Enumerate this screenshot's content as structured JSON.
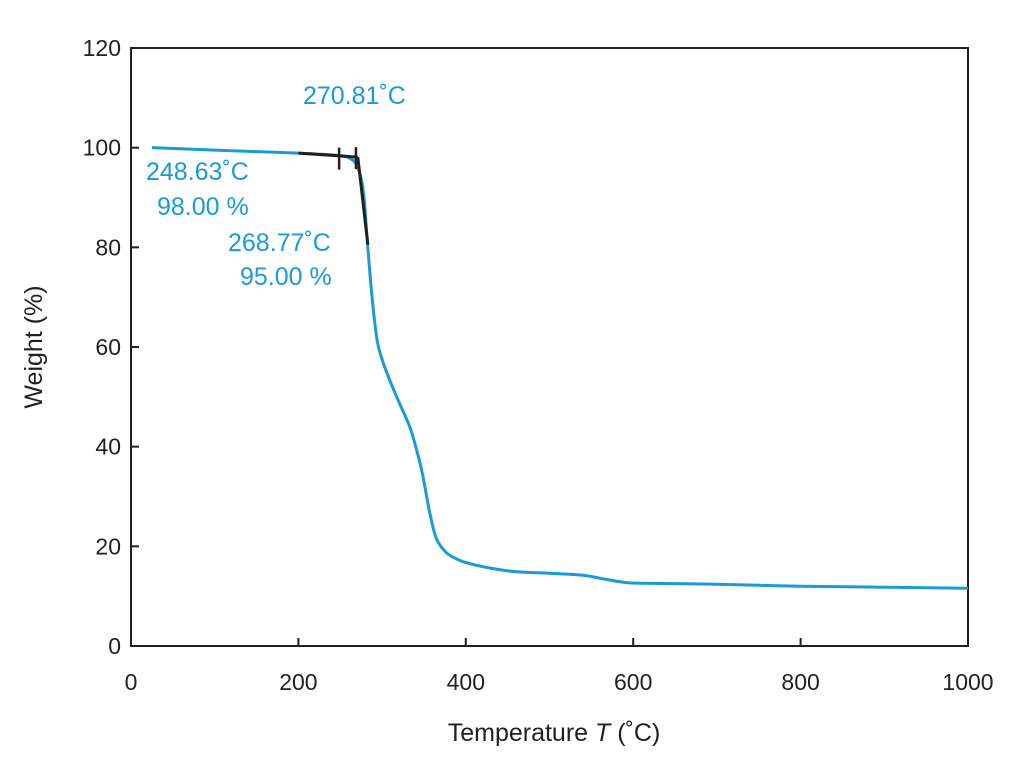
{
  "chart_data": {
    "type": "line",
    "title": "",
    "xlabel": "Temperature T (˚C)",
    "xlabel_parts": {
      "pre": "Temperature ",
      "var": "T",
      "post": " (˚C)"
    },
    "ylabel": "Weight (%)",
    "xlim": [
      0,
      1000
    ],
    "ylim": [
      0,
      120
    ],
    "xticks": [
      0,
      200,
      400,
      600,
      800,
      1000
    ],
    "yticks": [
      0,
      20,
      40,
      60,
      80,
      100,
      120
    ],
    "grid": false,
    "series_color": "#1a9ad6",
    "tangent_color": "#231f20",
    "series": [
      {
        "x": [
          25,
          100,
          200,
          250,
          262,
          268,
          272,
          276,
          279,
          282,
          288,
          294,
          300,
          309,
          320,
          333,
          341,
          348,
          357,
          365,
          377,
          390,
          401,
          430,
          461,
          500,
          540,
          560,
          588,
          610,
          700,
          800,
          900,
          1000
        ],
        "y": [
          100,
          99.5,
          98.9,
          98.4,
          97.8,
          97.0,
          95.5,
          93,
          89,
          82,
          70,
          61.4,
          57.5,
          53.4,
          49,
          44,
          39.5,
          34.7,
          26.7,
          21.5,
          18.7,
          17.4,
          16.7,
          15.6,
          14.9,
          14.6,
          14.2,
          13.6,
          12.8,
          12.6,
          12.4,
          12.0,
          11.8,
          11.6
        ]
      }
    ],
    "tangents": [
      {
        "x": [
          200,
          271
        ],
        "y": [
          98.9,
          98.1
        ]
      },
      {
        "x": [
          271,
          283
        ],
        "y": [
          98.1,
          80.5
        ]
      }
    ],
    "markers": [
      {
        "x": 248.63,
        "y": 98.0
      },
      {
        "x": 268.77,
        "y": 98.1
      }
    ],
    "annotations": [
      {
        "text": "270.81˚C"
      },
      {
        "text": "248.63˚C"
      },
      {
        "text": "98.00 %"
      },
      {
        "text": "268.77˚C"
      },
      {
        "text": "95.00 %"
      }
    ]
  }
}
